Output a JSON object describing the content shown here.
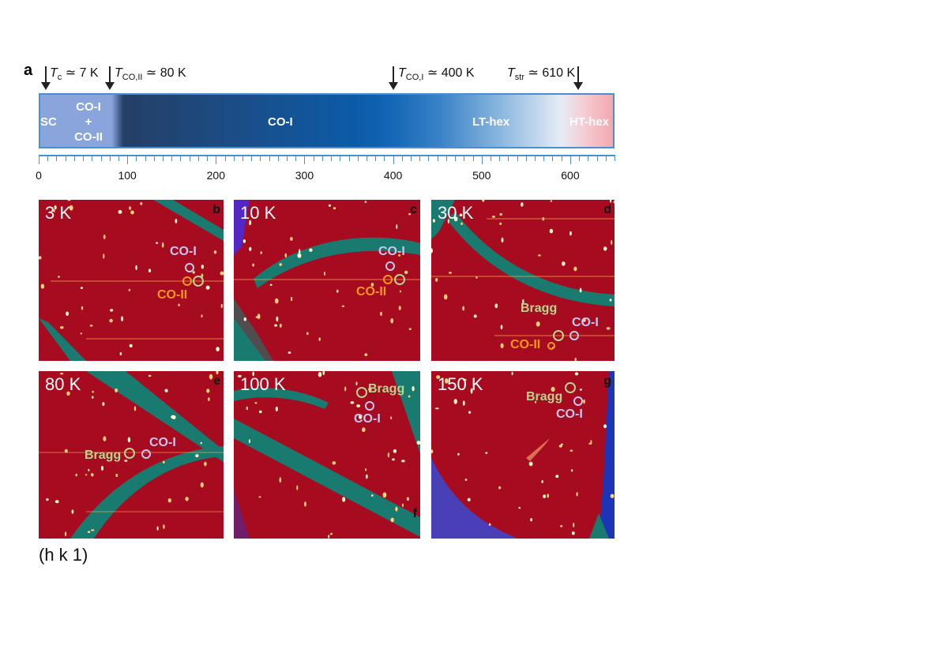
{
  "panel_a": {
    "letter": "a",
    "transitions": [
      {
        "symbol": "T",
        "sub": "c",
        "rest": " ≃ 7 K"
      },
      {
        "symbol": "T",
        "sub": "CO,II",
        "rest": " ≃ 80 K"
      },
      {
        "symbol": "T",
        "sub": "CO,I",
        "rest": " ≃ 400 K"
      },
      {
        "symbol": "T",
        "sub": "str",
        "rest": " ≃ 610 K"
      }
    ],
    "phases": {
      "sc": "SC",
      "coi_coii_1": "CO-I",
      "coi_coii_2": "+",
      "coi_coii_3": "CO-II",
      "coi": "CO-I",
      "lthex": "LT-hex",
      "hthex": "HT-hex"
    },
    "axis": {
      "min": 0,
      "max": 650,
      "tick_labels": [
        "0",
        "100",
        "200",
        "300",
        "400",
        "500",
        "600"
      ]
    }
  },
  "panels": [
    {
      "letter": "b",
      "temperature": "3 K",
      "labels": [
        "CO-I",
        "CO-II"
      ]
    },
    {
      "letter": "c",
      "temperature": "10 K",
      "labels": [
        "CO-I",
        "CO-II"
      ]
    },
    {
      "letter": "d",
      "temperature": "30 K",
      "labels": [
        "Bragg",
        "CO-I",
        "CO-II"
      ]
    },
    {
      "letter": "e",
      "temperature": "80 K",
      "labels": [
        "CO-I",
        "Bragg"
      ]
    },
    {
      "letter": "f",
      "temperature": "100 K",
      "labels": [
        "Bragg",
        "CO-I"
      ]
    },
    {
      "letter": "g",
      "temperature": "150 K",
      "labels": [
        "Bragg",
        "CO-I"
      ]
    }
  ],
  "plane_label": "(h k 1)",
  "colors": {
    "map_background": "#a60b1f",
    "detector_gap": "#197a70",
    "co_i": "#c7c8f2",
    "co_ii": "#f79a1b",
    "bragg": "#b9d48f",
    "phase_bar_border": "#4a8fcf"
  }
}
